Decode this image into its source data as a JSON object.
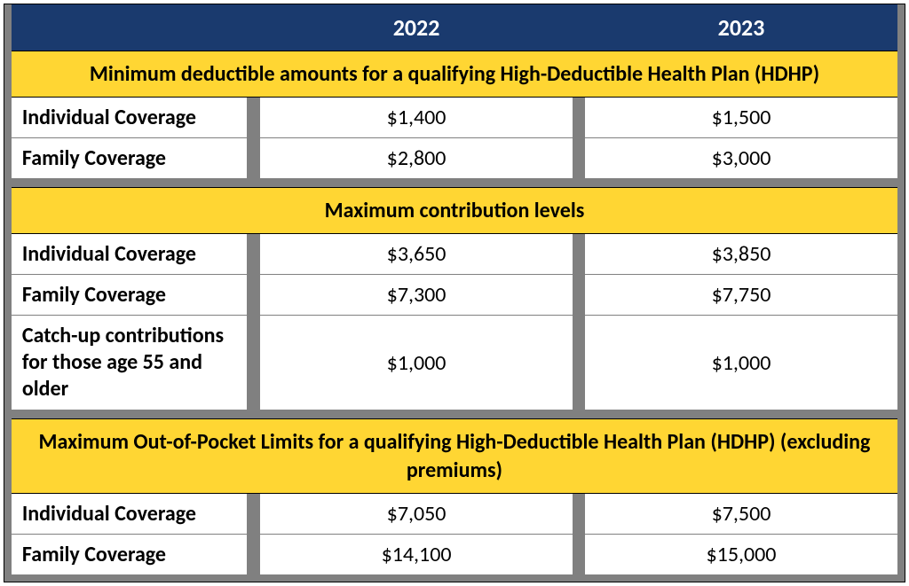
{
  "colors": {
    "header_bg": "#1a3a6e",
    "header_text": "#ffffff",
    "section_bg": "#ffd633",
    "cell_bg": "#ffffff",
    "gap_bg": "#808080",
    "text": "#000000"
  },
  "typography": {
    "font_family": "Calibri, Arial, sans-serif",
    "header_fontsize": 26,
    "section_fontsize": 24,
    "cell_fontsize": 24
  },
  "columns": {
    "label": "",
    "year1": "2022",
    "year2": "2023"
  },
  "sections": [
    {
      "title": "Minimum deductible amounts for a qualifying High-Deductible Health Plan (HDHP)",
      "rows": [
        {
          "label": "Individual Coverage",
          "y1": "$1,400",
          "y2": "$1,500"
        },
        {
          "label": "Family Coverage",
          "y1": "$2,800",
          "y2": "$3,000"
        }
      ]
    },
    {
      "title": "Maximum contribution levels",
      "rows": [
        {
          "label": "Individual Coverage",
          "y1": "$3,650",
          "y2": "$3,850"
        },
        {
          "label": "Family Coverage",
          "y1": "$7,300",
          "y2": "$7,750"
        },
        {
          "label": "Catch-up contributions for those age 55 and older",
          "y1": "$1,000",
          "y2": "$1,000",
          "tall": true
        }
      ]
    },
    {
      "title": "Maximum Out-of-Pocket Limits for a qualifying High-Deductible Health Plan (HDHP) (excluding premiums)",
      "rows": [
        {
          "label": "Individual Coverage",
          "y1": "$7,050",
          "y2": "$7,500"
        },
        {
          "label": "Family Coverage",
          "y1": "$14,100",
          "y2": "$15,000"
        }
      ]
    }
  ]
}
